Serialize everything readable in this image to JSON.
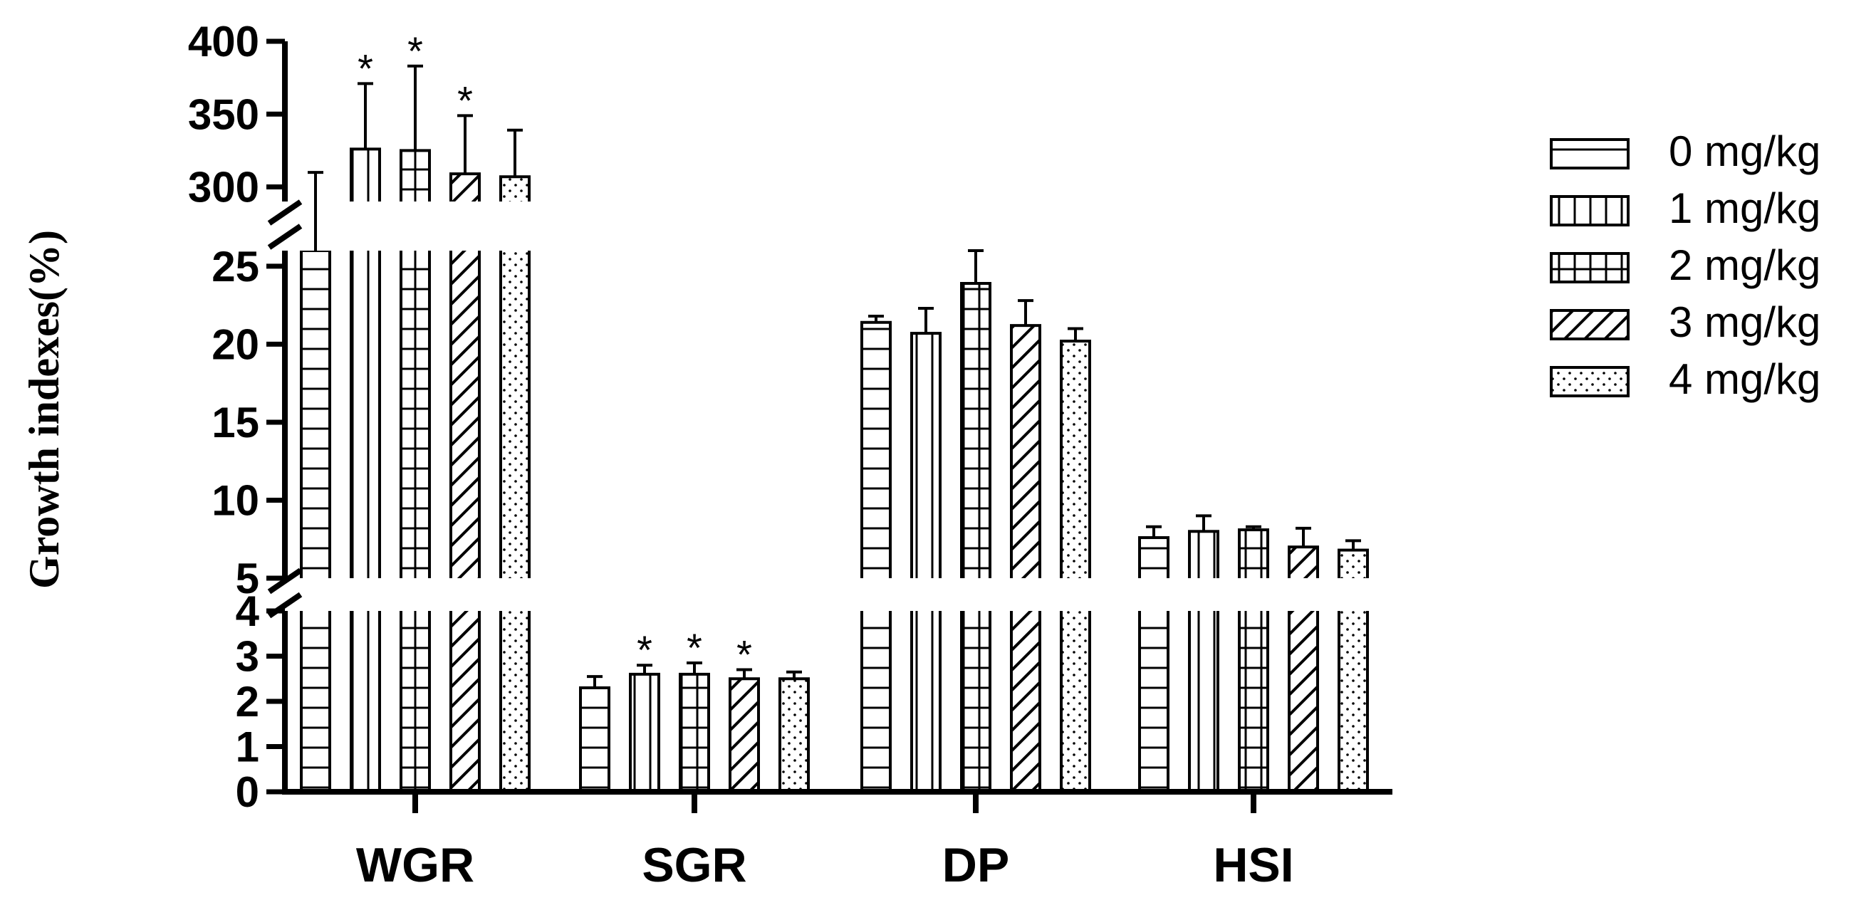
{
  "chart_data": {
    "type": "bar",
    "ylabel": "Growth indexes(%)",
    "xlabel": "",
    "categories": [
      "WGR",
      "SGR",
      "DP",
      "HSI"
    ],
    "series": [
      {
        "name": "0 mg/kg",
        "pattern": "hlines",
        "values": [
          270,
          2.3,
          21.4,
          7.6
        ],
        "errors": [
          40,
          0.25,
          0.4,
          0.7
        ]
      },
      {
        "name": "1 mg/kg",
        "pattern": "vlines",
        "values": [
          326,
          2.6,
          20.7,
          8.0
        ],
        "errors": [
          45,
          0.2,
          1.6,
          1.0
        ]
      },
      {
        "name": "2 mg/kg",
        "pattern": "grid",
        "values": [
          325,
          2.6,
          23.9,
          8.1
        ],
        "errors": [
          58,
          0.25,
          2.2,
          0.2
        ]
      },
      {
        "name": "3 mg/kg",
        "pattern": "diag",
        "values": [
          309,
          2.5,
          21.2,
          7.0
        ],
        "errors": [
          40,
          0.2,
          1.6,
          1.2
        ]
      },
      {
        "name": "4 mg/kg",
        "pattern": "dots",
        "values": [
          307,
          2.5,
          20.2,
          6.8
        ],
        "errors": [
          32,
          0.15,
          0.8,
          0.6
        ]
      }
    ],
    "significance": [
      {
        "category": "WGR",
        "series": [
          "1 mg/kg",
          "2 mg/kg",
          "3 mg/kg"
        ],
        "symbol": "*"
      },
      {
        "category": "SGR",
        "series": [
          "1 mg/kg",
          "2 mg/kg",
          "3 mg/kg"
        ],
        "symbol": "*"
      }
    ],
    "y_axis_segments": [
      {
        "range": [
          0,
          4
        ],
        "ticks": [
          "0",
          "1",
          "2",
          "3",
          "4"
        ]
      },
      {
        "range": [
          5,
          26
        ],
        "ticks": [
          "5",
          "10",
          "15",
          "20",
          "25"
        ]
      },
      {
        "range": [
          290,
          400
        ],
        "ticks": [
          "300",
          "350",
          "400"
        ]
      }
    ],
    "axis_breaks": [
      "between 4 and 5",
      "between 26 and 290"
    ],
    "legend_position": "right"
  }
}
